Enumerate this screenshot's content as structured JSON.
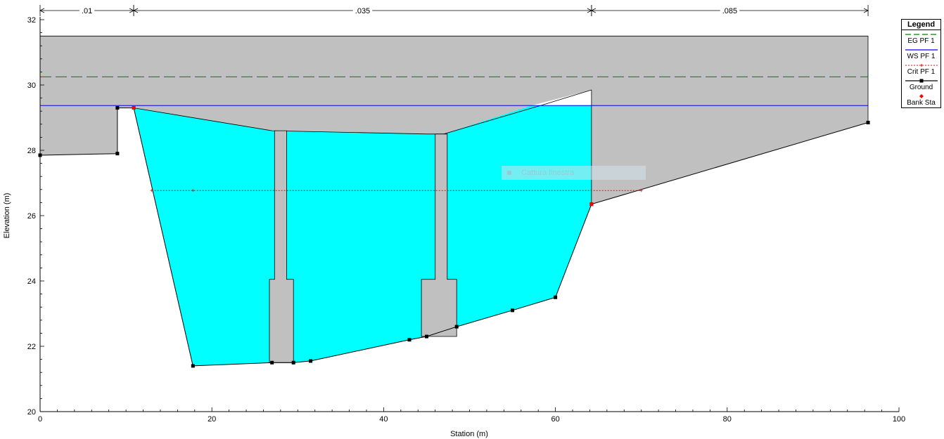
{
  "chart_data": {
    "type": "line",
    "xlabel": "Station (m)",
    "ylabel": "Elevation (m)",
    "xlim": [
      0,
      100
    ],
    "ylim": [
      20,
      32
    ],
    "x_ticks": [
      0,
      20,
      40,
      60,
      80,
      100
    ],
    "y_ticks": [
      20,
      22,
      24,
      26,
      28,
      30,
      32
    ],
    "grid": false,
    "legend": {
      "title": "Legend",
      "placement": "right",
      "entries": [
        {
          "label": "EG PF 1",
          "color": "#008000",
          "style": "long-dash"
        },
        {
          "label": "WS PF 1",
          "color": "#0000ff",
          "style": "solid"
        },
        {
          "label": "Crit PF 1",
          "color": "#ff0000",
          "style": "dotted"
        },
        {
          "label": "Ground",
          "color": "#000000",
          "style": "solid-square-markers"
        },
        {
          "label": "Bank Sta",
          "color": "#ff0000",
          "style": "red-diamond"
        }
      ]
    },
    "mannings_n": [
      {
        "label": ".01",
        "from": 0,
        "to": 10.9
      },
      {
        "label": ".035",
        "from": 10.9,
        "to": 64.2
      },
      {
        "label": ".085",
        "from": 64.2,
        "to": 96.4
      }
    ],
    "deck": {
      "top": 31.5,
      "from": 0,
      "to": 96.4,
      "color": "#c0c0c0"
    },
    "ground": [
      [
        0,
        27.85
      ],
      [
        9.0,
        27.9
      ],
      [
        9.0,
        29.3
      ],
      [
        10.9,
        29.3
      ],
      [
        17.8,
        21.4
      ],
      [
        27.0,
        21.5
      ],
      [
        29.5,
        21.5
      ],
      [
        31.5,
        21.55
      ],
      [
        43.0,
        22.2
      ],
      [
        45.0,
        22.3
      ],
      [
        48.5,
        22.6
      ],
      [
        55.0,
        23.1
      ],
      [
        60.0,
        23.5
      ],
      [
        64.2,
        26.35
      ],
      [
        96.4,
        28.85
      ]
    ],
    "low_chord": [
      [
        10.9,
        29.3
      ],
      [
        27.0,
        28.6
      ],
      [
        45.0,
        28.5
      ],
      [
        47.0,
        28.5
      ],
      [
        58.0,
        29.35
      ],
      [
        64.2,
        29.85
      ]
    ],
    "piers": [
      {
        "x_top": [
          27.3,
          28.7
        ],
        "x_bottom": [
          26.7,
          29.5
        ],
        "step_elev": 24.05,
        "bottom": 21.5,
        "top": 28.6
      },
      {
        "x_top": [
          46.0,
          47.4
        ],
        "x_bottom": [
          44.4,
          48.5
        ],
        "step_elev": 24.05,
        "bottom": 22.3,
        "top": 28.5
      }
    ],
    "series": [
      {
        "name": "EG PF 1",
        "values": [
          [
            0,
            30.25
          ],
          [
            96.4,
            30.25
          ]
        ]
      },
      {
        "name": "WS PF 1",
        "values": [
          [
            0,
            29.37
          ],
          [
            96.4,
            29.37
          ]
        ]
      },
      {
        "name": "Crit PF 1",
        "values": [
          [
            13.0,
            26.77
          ],
          [
            70.0,
            26.77
          ]
        ]
      }
    ],
    "bank_stations": [
      [
        10.9,
        29.3
      ],
      [
        64.2,
        26.35
      ]
    ],
    "water_fill": {
      "color": "#00ffff",
      "surface": 29.37
    }
  },
  "overlay": {
    "label": "Cattura finestra"
  }
}
